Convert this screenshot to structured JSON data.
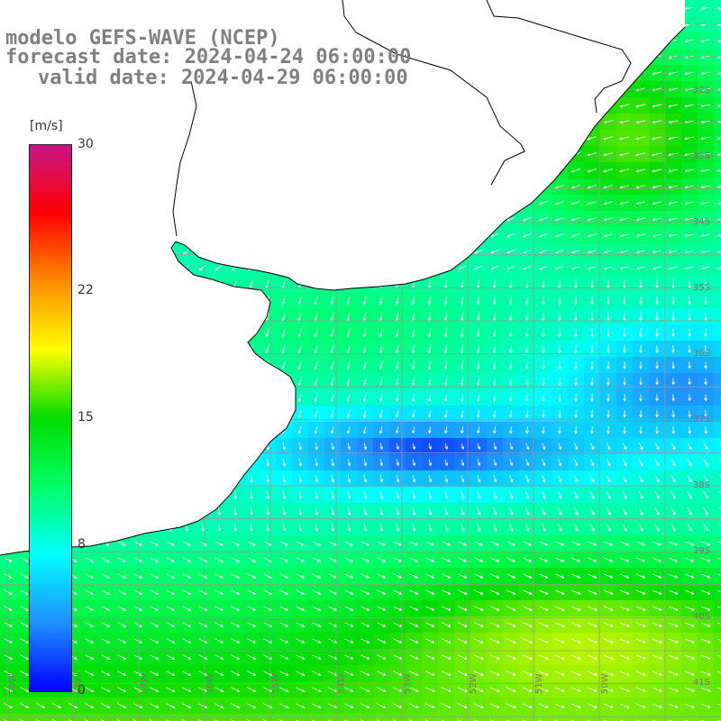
{
  "title": {
    "line1": "modelo GEFS-WAVE (NCEP)",
    "line2": "forecast date: 2024-04-24 06:00:00",
    "line3": "valid date: 2024-04-29 06:00:00"
  },
  "colorbar": {
    "unit": "[m/s]",
    "min": 0,
    "max": 30,
    "ticks": [
      "30",
      "22",
      "15",
      "8",
      "0"
    ],
    "tick_values": [
      30,
      22,
      15,
      8,
      0
    ],
    "colors": [
      "#0000ff",
      "#1e90ff",
      "#00ffff",
      "#00ff66",
      "#00dd00",
      "#ffff00",
      "#ff8c00",
      "#ff0000",
      "#c71585"
    ]
  },
  "map": {
    "variable": "wind speed and direction",
    "colors": {
      "land": "#ffffff",
      "coast": "#000000",
      "grid": "#9a9a9a",
      "arrows": "#ffffff"
    },
    "lat_labels": [
      "32S",
      "33S",
      "34S",
      "35S",
      "36S",
      "37S",
      "38S",
      "39S",
      "40S",
      "41S"
    ],
    "lon_labels": [
      "59W",
      "58W",
      "57W",
      "56W",
      "55W",
      "54W",
      "53W",
      "52W",
      "51W",
      "50W"
    ]
  }
}
